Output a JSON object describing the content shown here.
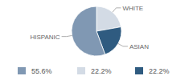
{
  "chart_data": {
    "type": "pie",
    "categories": [
      "HISPANIC",
      "WHITE",
      "ASIAN"
    ],
    "values": [
      55.6,
      22.2,
      22.2
    ],
    "value_labels": [
      "55.6%",
      "22.2%",
      "22.2%"
    ],
    "colors": [
      "#8098b3",
      "#d3dbe5",
      "#2f5b80"
    ],
    "legend": "bottom"
  }
}
